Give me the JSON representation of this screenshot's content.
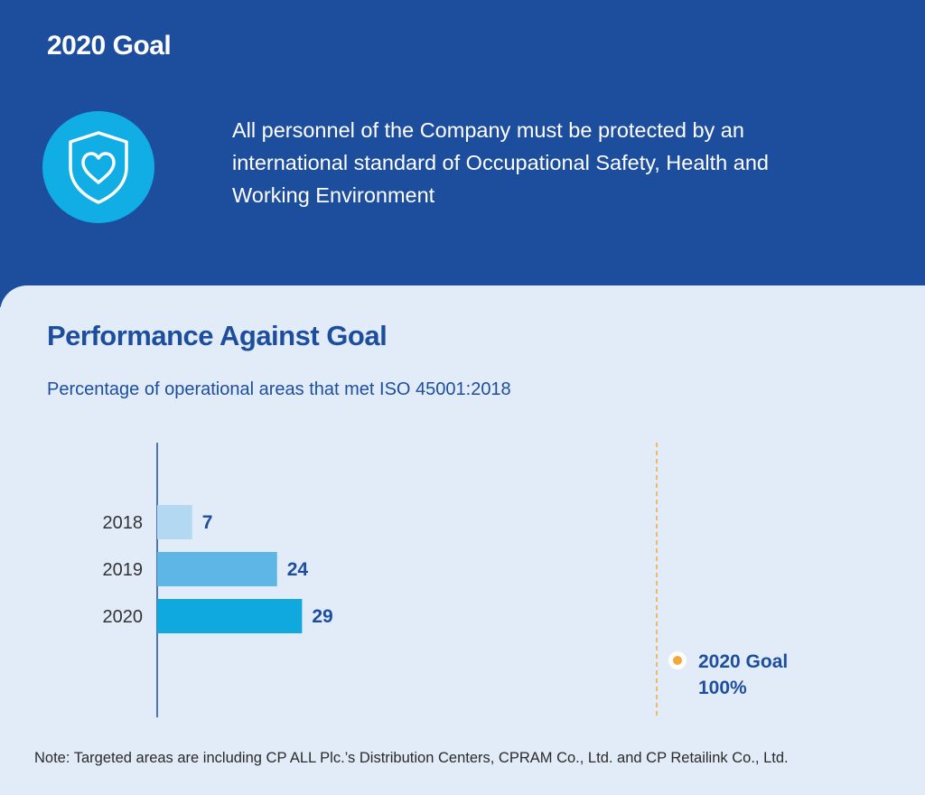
{
  "header": {
    "title": "2020 Goal",
    "icon": "shield-heart-icon",
    "goal_text": "All personnel of the Company must be protected by an international standard of Occupational Safety, Health and Working Environment"
  },
  "performance": {
    "title": "Performance Against Goal",
    "subtitle": "Percentage of operational areas that met ISO 45001:2018"
  },
  "goal_marker": {
    "label": "2020 Goal",
    "value_label": "100%"
  },
  "note": "Note: Targeted areas are including CP ALL Plc.’s Distribution Centers, CPRAM Co., Ltd. and CP Retailink Co., Ltd.",
  "colors": {
    "header_bg": "#1d4e9e",
    "panel_bg": "#e2ecf8",
    "icon_bg": "#11aee6",
    "bar_2018": "#b3d8f2",
    "bar_2019": "#5db6e6",
    "bar_2020": "#0fa8df",
    "goal_line": "#f4a73c"
  },
  "chart_data": {
    "type": "bar",
    "orientation": "horizontal",
    "title": "Percentage of operational areas that met ISO 45001:2018",
    "categories": [
      "2018",
      "2019",
      "2020"
    ],
    "values": [
      7,
      24,
      29
    ],
    "xlim": [
      0,
      100
    ],
    "goal": {
      "label": "2020 Goal",
      "value": 100
    },
    "grid": false
  }
}
